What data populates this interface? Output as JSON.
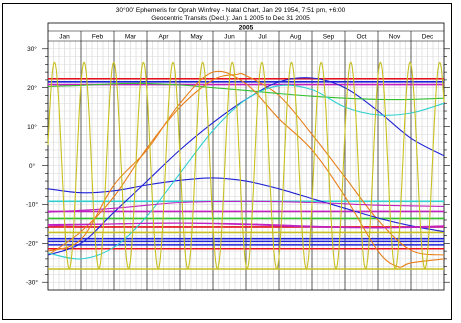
{
  "header": {
    "title_line1": "30°00' Ephemeris for Oprah Winfrey - Natal Chart, Jan 29 1954, 7:51 pm, +6:00",
    "title_line2": "Geocentric Transits (Decl.): Jan 1 2005 to Dec 31 2005"
  },
  "chart_data": {
    "type": "line",
    "year_label": "2005",
    "months": [
      "Jan",
      "Feb",
      "Mar",
      "Apr",
      "May",
      "Jun",
      "Jul",
      "Aug",
      "Sep",
      "Oct",
      "Nov",
      "Dec"
    ],
    "ylabel_ticks": [
      "30°",
      "20°",
      "10°",
      "0°",
      "-10°",
      "-20°",
      "-30°"
    ],
    "ylim": [
      -32,
      32
    ],
    "x_unit": "months since Jan 1 2005",
    "grid": true,
    "natal_lines": [
      {
        "name": "natal-1",
        "y": 22.3,
        "color": "#e8101c"
      },
      {
        "name": "natal-2",
        "y": 21.5,
        "color": "#1e22d6"
      },
      {
        "name": "natal-3",
        "y": 20.8,
        "color": "#c020c0"
      },
      {
        "name": "natal-4",
        "y": -9.2,
        "color": "#30d0d0"
      },
      {
        "name": "natal-5",
        "y": -11.8,
        "color": "#c020c0"
      },
      {
        "name": "natal-6",
        "y": -13.6,
        "color": "#30c030"
      },
      {
        "name": "natal-7",
        "y": -15.8,
        "color": "#e8101c"
      },
      {
        "name": "natal-8",
        "y": -18.8,
        "color": "#1e22d6"
      },
      {
        "name": "natal-9",
        "y": -19.5,
        "color": "#1e22d6"
      },
      {
        "name": "natal-10",
        "y": -20.4,
        "color": "#1e22d6"
      },
      {
        "name": "natal-11",
        "y": -21.4,
        "color": "#e8101c"
      },
      {
        "name": "natal-12",
        "y": -26.6,
        "color": "#c8c020"
      },
      {
        "name": "natal-13",
        "y": -17.2,
        "color": "#c8c020"
      }
    ],
    "series": [
      {
        "name": "sun",
        "color": "#e8801c",
        "points": [
          [
            0,
            -23
          ],
          [
            1,
            -17
          ],
          [
            2,
            -8
          ],
          [
            3,
            4.5
          ],
          [
            4,
            15
          ],
          [
            5,
            22
          ],
          [
            5.7,
            23.4
          ],
          [
            6,
            23.1
          ],
          [
            7,
            18
          ],
          [
            8,
            8
          ],
          [
            9,
            -3
          ],
          [
            10,
            -14
          ],
          [
            11,
            -21.8
          ],
          [
            12,
            -23
          ]
        ]
      },
      {
        "name": "mars",
        "color": "#1e22d6",
        "points": [
          [
            0,
            -23
          ],
          [
            1,
            -20
          ],
          [
            2,
            -12
          ],
          [
            3,
            -4
          ],
          [
            4,
            4
          ],
          [
            5,
            11
          ],
          [
            6,
            17
          ],
          [
            7,
            21.5
          ],
          [
            8,
            22.5
          ],
          [
            9,
            20
          ],
          [
            10,
            14
          ],
          [
            11,
            7
          ],
          [
            12,
            2.5
          ]
        ]
      },
      {
        "name": "jupiter",
        "color": "#1e22d6",
        "points": [
          [
            0,
            -6
          ],
          [
            1,
            -7
          ],
          [
            2,
            -6.5
          ],
          [
            3,
            -5
          ],
          [
            4,
            -3.8
          ],
          [
            5,
            -3.2
          ],
          [
            6,
            -4
          ],
          [
            7,
            -6
          ],
          [
            8,
            -8.5
          ],
          [
            9,
            -11
          ],
          [
            10,
            -13.5
          ],
          [
            11,
            -15.5
          ],
          [
            12,
            -17
          ]
        ]
      },
      {
        "name": "saturn",
        "color": "#30c030",
        "points": [
          [
            0,
            20.3
          ],
          [
            1,
            20.6
          ],
          [
            2,
            21
          ],
          [
            3,
            21.1
          ],
          [
            4,
            20.7
          ],
          [
            5,
            20
          ],
          [
            6,
            19.3
          ],
          [
            7,
            18.5
          ],
          [
            8,
            17.8
          ],
          [
            9,
            17.3
          ],
          [
            10,
            17
          ],
          [
            11,
            17
          ],
          [
            12,
            17.3
          ]
        ]
      },
      {
        "name": "venus",
        "color": "#30d0d0",
        "points": [
          [
            0,
            -22.5
          ],
          [
            1,
            -24
          ],
          [
            2,
            -21
          ],
          [
            3,
            -13
          ],
          [
            4,
            -2
          ],
          [
            5,
            9
          ],
          [
            6,
            17
          ],
          [
            7,
            20.5
          ],
          [
            8,
            19.5
          ],
          [
            9,
            15
          ],
          [
            10,
            13
          ],
          [
            11,
            13.5
          ],
          [
            12,
            16
          ]
        ]
      },
      {
        "name": "neptune",
        "color": "#c020c0",
        "points": [
          [
            0,
            -15.5
          ],
          [
            2,
            -15
          ],
          [
            4,
            -14.8
          ],
          [
            6,
            -15.2
          ],
          [
            8,
            -15.8
          ],
          [
            10,
            -16
          ],
          [
            12,
            -15.5
          ]
        ]
      },
      {
        "name": "uranus",
        "color": "#c020c0",
        "points": [
          [
            0,
            -12
          ],
          [
            2,
            -11
          ],
          [
            4,
            -9.5
          ],
          [
            6,
            -9.2
          ],
          [
            8,
            -9.5
          ],
          [
            10,
            -10.2
          ],
          [
            12,
            -10.5
          ]
        ]
      },
      {
        "name": "pluto",
        "color": "#c020c0",
        "points": [
          [
            0,
            -15.2
          ],
          [
            2,
            -15
          ],
          [
            4,
            -14.8
          ],
          [
            6,
            -15
          ],
          [
            8,
            -15.6
          ],
          [
            10,
            -16
          ],
          [
            12,
            -15.8
          ]
        ]
      },
      {
        "name": "mercury",
        "color": "#e8801c",
        "points": [
          [
            0,
            -22
          ],
          [
            1,
            -19
          ],
          [
            2,
            -5
          ],
          [
            3,
            4
          ],
          [
            4,
            16
          ],
          [
            5,
            24
          ],
          [
            6,
            21
          ],
          [
            7,
            12
          ],
          [
            8,
            4
          ],
          [
            9,
            -8
          ],
          [
            10,
            -22
          ],
          [
            10.6,
            -26
          ],
          [
            11,
            -25
          ],
          [
            12,
            -24
          ]
        ]
      }
    ],
    "moon": {
      "color": "#c8c020",
      "amplitude": 26.5,
      "period_months": 0.898,
      "phase": 0.2
    }
  }
}
